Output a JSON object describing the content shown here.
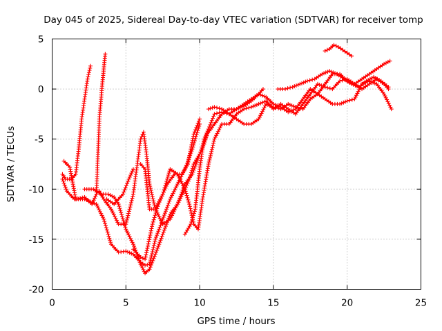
{
  "chart_data": {
    "type": "scatter",
    "title": "Day 045 of 2025, Sidereal Day-to-day VTEC variation (SDTVAR) for receiver tomp",
    "xlabel": "GPS time / hours",
    "ylabel": "SDTVAR / TECUs",
    "xlim": [
      0,
      25
    ],
    "ylim": [
      -20,
      5
    ],
    "x_ticks": [
      0,
      5,
      10,
      15,
      20,
      25
    ],
    "y_ticks": [
      5,
      0,
      -5,
      -10,
      -15,
      -20
    ],
    "grid": true,
    "marker": "+",
    "color": "#ff0000",
    "series": [
      {
        "points": [
          [
            0.7,
            -8.5
          ],
          [
            0.9,
            -9.0
          ],
          [
            1.3,
            -9.0
          ],
          [
            1.6,
            -8.5
          ],
          [
            1.8,
            -6.0
          ],
          [
            2.0,
            -3.0
          ],
          [
            2.2,
            -1.0
          ],
          [
            2.4,
            1.0
          ],
          [
            2.6,
            2.3
          ]
        ]
      },
      {
        "points": [
          [
            0.8,
            -7.2
          ],
          [
            1.2,
            -7.8
          ],
          [
            1.6,
            -11.0
          ],
          [
            2.2,
            -10.8
          ],
          [
            2.7,
            -11.5
          ],
          [
            3.0,
            -10.5
          ],
          [
            3.2,
            -3.0
          ],
          [
            3.4,
            0.5
          ],
          [
            3.6,
            3.5
          ]
        ]
      },
      {
        "points": [
          [
            0.7,
            -9.0
          ],
          [
            1.0,
            -10.2
          ],
          [
            1.5,
            -11.0
          ],
          [
            2.2,
            -11.0
          ],
          [
            3.0,
            -11.5
          ],
          [
            3.5,
            -13.0
          ],
          [
            3.8,
            -14.5
          ],
          [
            4.0,
            -15.5
          ],
          [
            4.5,
            -16.3
          ],
          [
            5.0,
            -16.2
          ],
          [
            5.5,
            -16.5
          ],
          [
            6.0,
            -17.3
          ],
          [
            6.3,
            -17.6
          ],
          [
            6.6,
            -17.5
          ],
          [
            7.0,
            -15.0
          ],
          [
            7.5,
            -13.0
          ],
          [
            8.0,
            -11.0
          ],
          [
            8.5,
            -9.5
          ],
          [
            9.0,
            -8.0
          ],
          [
            9.5,
            -6.0
          ],
          [
            10.0,
            -3.5
          ]
        ]
      },
      {
        "points": [
          [
            2.2,
            -10.0
          ],
          [
            2.8,
            -10.0
          ],
          [
            3.3,
            -10.5
          ],
          [
            3.8,
            -10.5
          ],
          [
            4.2,
            -10.8
          ],
          [
            4.5,
            -11.5
          ],
          [
            5.0,
            -14.0
          ],
          [
            5.5,
            -15.5
          ],
          [
            6.0,
            -17.5
          ],
          [
            6.3,
            -18.4
          ],
          [
            6.6,
            -18.0
          ],
          [
            7.0,
            -16.5
          ],
          [
            7.5,
            -14.5
          ],
          [
            8.0,
            -12.5
          ],
          [
            8.5,
            -11.5
          ],
          [
            9.0,
            -10.0
          ],
          [
            9.3,
            -9.0
          ],
          [
            9.6,
            -7.5
          ],
          [
            10.0,
            -6.5
          ],
          [
            10.5,
            -4.5
          ],
          [
            11.0,
            -3.5
          ],
          [
            11.5,
            -2.5
          ],
          [
            12.0,
            -2.0
          ],
          [
            12.5,
            -2.0
          ],
          [
            13.0,
            -1.7
          ],
          [
            13.5,
            -1.2
          ],
          [
            14.0,
            -0.5
          ],
          [
            14.3,
            0.0
          ]
        ]
      },
      {
        "points": [
          [
            3.2,
            -10.2
          ],
          [
            3.5,
            -11.0
          ],
          [
            4.0,
            -12.0
          ],
          [
            4.5,
            -13.5
          ],
          [
            5.0,
            -13.5
          ],
          [
            5.5,
            -10.5
          ],
          [
            6.0,
            -5.0
          ],
          [
            6.2,
            -4.3
          ],
          [
            6.4,
            -6.5
          ],
          [
            6.6,
            -9.5
          ],
          [
            7.0,
            -12.0
          ],
          [
            7.5,
            -13.5
          ],
          [
            8.0,
            -13.0
          ],
          [
            8.5,
            -11.5
          ],
          [
            9.0,
            -9.5
          ],
          [
            9.5,
            -8.5
          ],
          [
            10.0,
            -6.5
          ],
          [
            10.3,
            -5.5
          ],
          [
            10.6,
            -4.0
          ]
        ]
      },
      {
        "points": [
          [
            3.7,
            -11.0
          ],
          [
            4.2,
            -11.5
          ],
          [
            4.8,
            -10.5
          ],
          [
            5.2,
            -9.0
          ],
          [
            5.5,
            -8.0
          ]
        ]
      },
      {
        "points": [
          [
            5.5,
            -16.0
          ],
          [
            6.0,
            -16.8
          ],
          [
            6.3,
            -17.0
          ],
          [
            6.8,
            -13.5
          ],
          [
            7.2,
            -11.5
          ],
          [
            7.8,
            -9.5
          ],
          [
            8.3,
            -8.5
          ],
          [
            8.8,
            -8.5
          ],
          [
            9.2,
            -7.5
          ],
          [
            9.6,
            -4.5
          ],
          [
            10.0,
            -3.0
          ]
        ]
      },
      {
        "points": [
          [
            6.0,
            -7.5
          ],
          [
            6.3,
            -8.0
          ],
          [
            6.6,
            -12.0
          ],
          [
            7.0,
            -12.0
          ],
          [
            7.5,
            -10.5
          ],
          [
            7.8,
            -9.0
          ],
          [
            8.0,
            -8.0
          ],
          [
            8.5,
            -8.5
          ],
          [
            9.0,
            -10.0
          ],
          [
            9.3,
            -11.5
          ],
          [
            9.6,
            -13.5
          ],
          [
            9.9,
            -14.0
          ],
          [
            10.2,
            -11.0
          ],
          [
            10.6,
            -7.5
          ],
          [
            11.0,
            -5.0
          ],
          [
            11.5,
            -3.5
          ],
          [
            12.0,
            -3.5
          ],
          [
            12.5,
            -2.5
          ],
          [
            13.0,
            -2.0
          ],
          [
            13.5,
            -1.8
          ],
          [
            14.0,
            -1.5
          ],
          [
            14.5,
            -1.2
          ],
          [
            15.0,
            -2.0
          ],
          [
            15.5,
            -1.5
          ],
          [
            16.0,
            -2.0
          ],
          [
            16.5,
            -2.5
          ],
          [
            17.0,
            -1.5
          ],
          [
            17.5,
            -0.5
          ],
          [
            18.0,
            0.5
          ],
          [
            18.5,
            0.2
          ],
          [
            19.0,
            0.0
          ],
          [
            19.5,
            0.8
          ],
          [
            20.0,
            1.0
          ],
          [
            20.5,
            0.5
          ],
          [
            21.0,
            0.0
          ],
          [
            21.5,
            0.5
          ],
          [
            22.0,
            1.0
          ],
          [
            22.5,
            0.5
          ],
          [
            22.8,
            0.0
          ]
        ]
      },
      {
        "points": [
          [
            9.0,
            -14.5
          ],
          [
            9.4,
            -13.5
          ],
          [
            9.7,
            -12.0
          ],
          [
            10.0,
            -8.0
          ],
          [
            10.3,
            -5.0
          ],
          [
            10.6,
            -4.0
          ],
          [
            11.0,
            -2.5
          ],
          [
            11.5,
            -2.3
          ],
          [
            12.0,
            -2.5
          ],
          [
            12.5,
            -3.0
          ],
          [
            13.0,
            -3.5
          ],
          [
            13.5,
            -3.5
          ],
          [
            14.0,
            -3.0
          ],
          [
            14.5,
            -1.5
          ],
          [
            15.0,
            -1.8
          ],
          [
            15.5,
            -2.0
          ],
          [
            16.0,
            -1.5
          ],
          [
            16.5,
            -1.8
          ],
          [
            17.0,
            -2.0
          ],
          [
            17.5,
            -1.0
          ],
          [
            18.0,
            -0.5
          ],
          [
            18.5,
            -1.0
          ],
          [
            19.0,
            -1.5
          ],
          [
            19.5,
            -1.5
          ],
          [
            20.0,
            -1.2
          ],
          [
            20.5,
            -1.0
          ],
          [
            21.0,
            0.5
          ],
          [
            21.5,
            0.8
          ],
          [
            22.0,
            0.5
          ],
          [
            22.5,
            -0.5
          ],
          [
            23.0,
            -2.0
          ]
        ]
      },
      {
        "points": [
          [
            10.6,
            -2.0
          ],
          [
            11.0,
            -1.8
          ],
          [
            11.5,
            -2.0
          ],
          [
            12.0,
            -2.5
          ],
          [
            12.5,
            -2.0
          ],
          [
            13.0,
            -1.5
          ],
          [
            13.5,
            -1.0
          ],
          [
            14.0,
            -0.5
          ],
          [
            14.5,
            -0.8
          ],
          [
            15.0,
            -1.5
          ],
          [
            15.5,
            -1.8
          ],
          [
            16.0,
            -2.3
          ],
          [
            16.5,
            -2.0
          ],
          [
            17.0,
            -1.0
          ],
          [
            17.5,
            0.0
          ],
          [
            18.0,
            -0.5
          ],
          [
            18.5,
            0.5
          ],
          [
            19.0,
            1.5
          ],
          [
            19.5,
            1.5
          ],
          [
            20.0,
            0.8
          ],
          [
            20.5,
            0.5
          ],
          [
            21.0,
            1.0
          ],
          [
            21.5,
            1.5
          ],
          [
            22.0,
            2.0
          ],
          [
            22.5,
            2.5
          ],
          [
            22.9,
            2.8
          ]
        ]
      },
      {
        "points": [
          [
            15.3,
            0.0
          ],
          [
            15.8,
            0.0
          ],
          [
            16.3,
            0.2
          ],
          [
            16.8,
            0.5
          ],
          [
            17.3,
            0.8
          ],
          [
            17.8,
            1.0
          ],
          [
            18.3,
            1.5
          ],
          [
            18.8,
            1.8
          ],
          [
            19.3,
            1.5
          ],
          [
            19.8,
            1.0
          ],
          [
            20.3,
            0.5
          ],
          [
            20.8,
            0.2
          ],
          [
            21.3,
            0.8
          ],
          [
            21.8,
            1.2
          ],
          [
            22.3,
            0.8
          ],
          [
            22.8,
            0.2
          ]
        ]
      },
      {
        "points": [
          [
            18.5,
            3.8
          ],
          [
            18.8,
            4.0
          ],
          [
            19.1,
            4.4
          ],
          [
            19.4,
            4.2
          ],
          [
            19.7,
            3.9
          ],
          [
            20.0,
            3.6
          ],
          [
            20.3,
            3.3
          ]
        ]
      }
    ]
  }
}
